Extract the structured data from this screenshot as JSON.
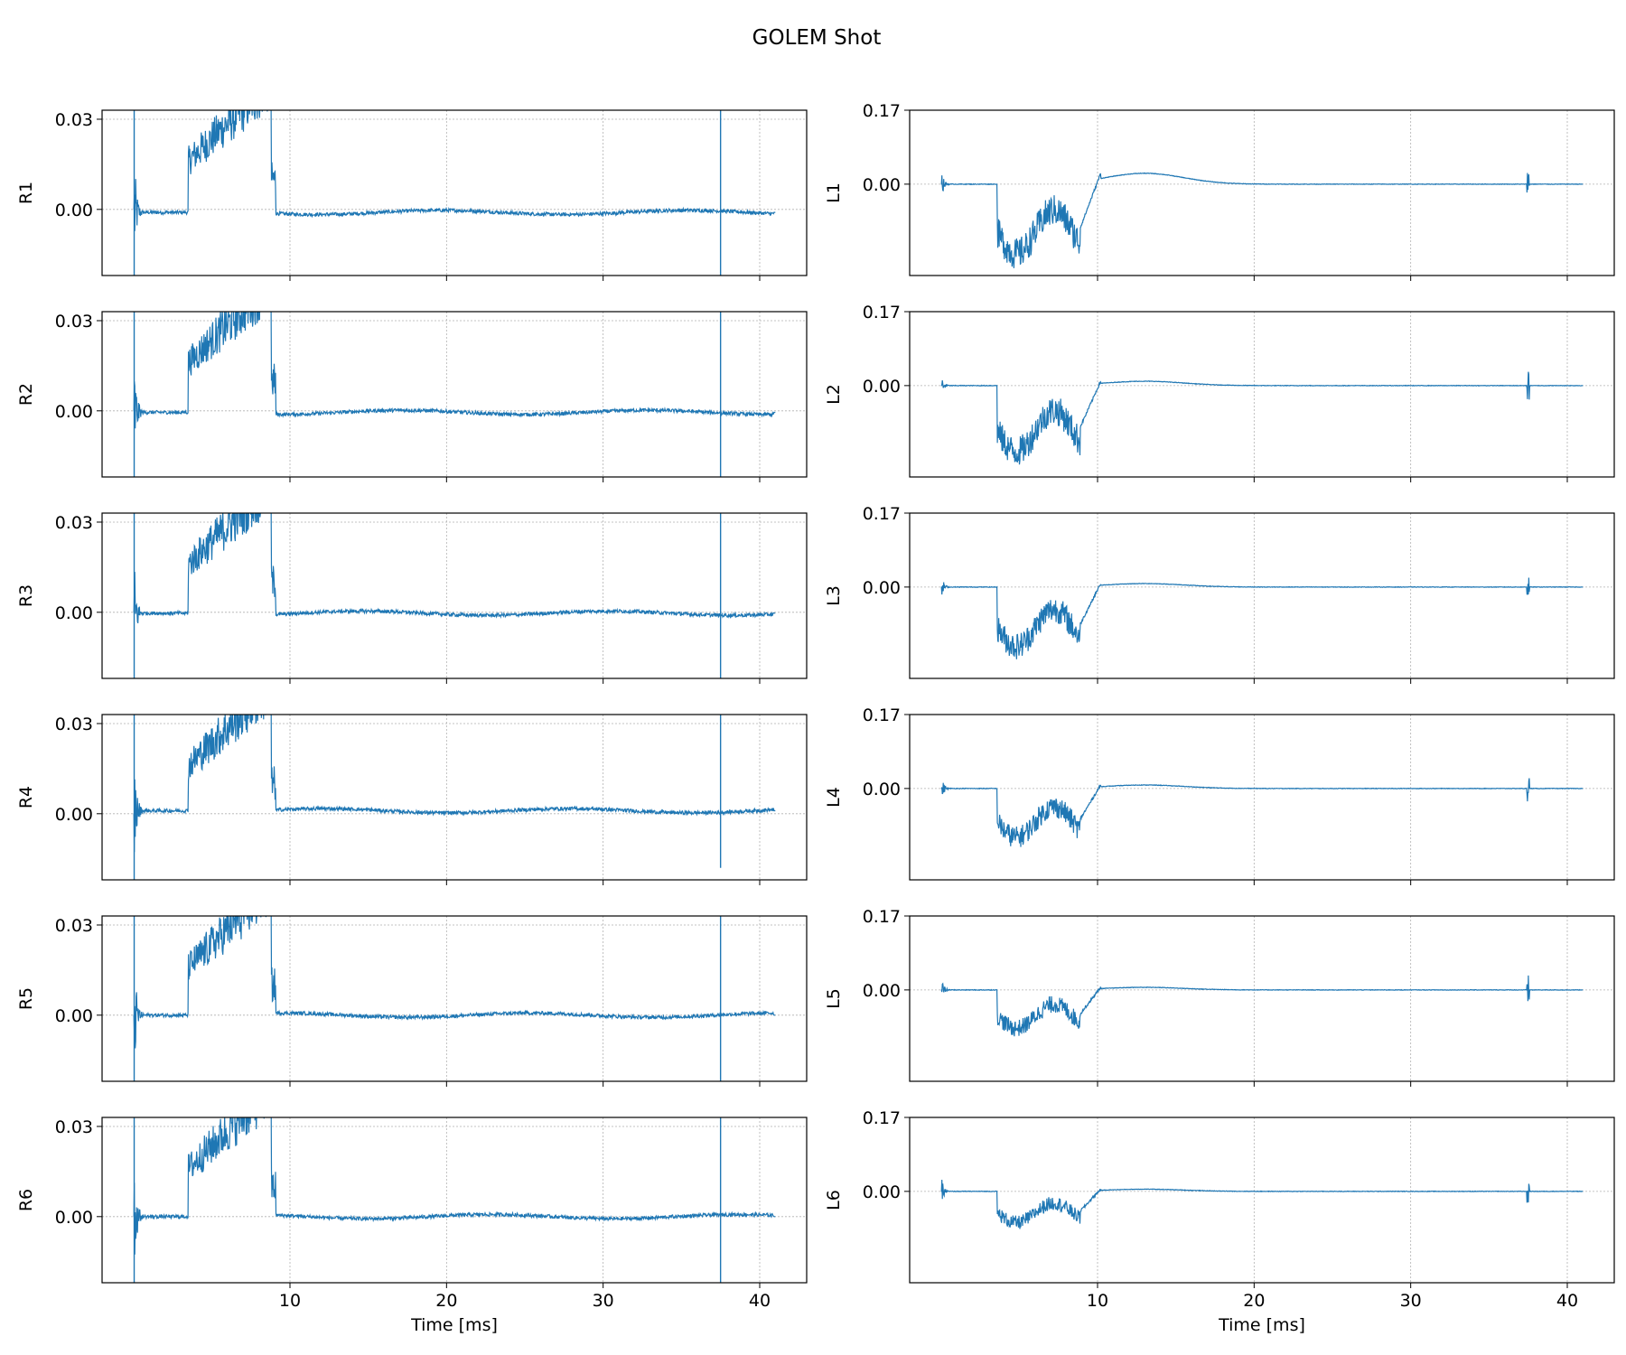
{
  "figure": {
    "title": "GOLEM Shot"
  },
  "chart_data": [
    {
      "type": "line",
      "ylabel": "R1",
      "yticks": [
        "0.03",
        "0.00"
      ],
      "ylim": [
        -0.022,
        0.033
      ],
      "xlim": [
        -2,
        43
      ],
      "xticks": [
        "10",
        "20",
        "30",
        "40"
      ],
      "xlabel": "",
      "series": [
        {
          "color": "#1f77b4",
          "baseline": -0.001
        }
      ]
    },
    {
      "type": "line",
      "ylabel": "R2",
      "yticks": [
        "0.03",
        "0.00"
      ],
      "ylim": [
        -0.022,
        0.033
      ],
      "xlim": [
        -2,
        43
      ],
      "xticks": [
        "10",
        "20",
        "30",
        "40"
      ],
      "xlabel": "",
      "series": [
        {
          "color": "#1f77b4",
          "baseline": -0.0005
        }
      ]
    },
    {
      "type": "line",
      "ylabel": "R3",
      "yticks": [
        "0.03",
        "0.00"
      ],
      "ylim": [
        -0.022,
        0.033
      ],
      "xlim": [
        -2,
        43
      ],
      "xticks": [
        "10",
        "20",
        "30",
        "40"
      ],
      "xlabel": "",
      "series": [
        {
          "color": "#1f77b4",
          "baseline": -0.0003
        }
      ]
    },
    {
      "type": "line",
      "ylabel": "R4",
      "yticks": [
        "0.03",
        "0.00"
      ],
      "ylim": [
        -0.022,
        0.033
      ],
      "xlim": [
        -2,
        43
      ],
      "xticks": [
        "10",
        "20",
        "30",
        "40"
      ],
      "xlabel": "",
      "series": [
        {
          "color": "#1f77b4",
          "baseline": 0.001
        }
      ]
    },
    {
      "type": "line",
      "ylabel": "R5",
      "yticks": [
        "0.03",
        "0.00"
      ],
      "ylim": [
        -0.022,
        0.033
      ],
      "xlim": [
        -2,
        43
      ],
      "xticks": [
        "10",
        "20",
        "30",
        "40"
      ],
      "xlabel": "",
      "series": [
        {
          "color": "#1f77b4",
          "baseline": 0.0
        }
      ]
    },
    {
      "type": "line",
      "ylabel": "R6",
      "yticks": [
        "0.03",
        "0.00"
      ],
      "ylim": [
        -0.022,
        0.033
      ],
      "xlim": [
        -2,
        43
      ],
      "xticks": [
        "10",
        "20",
        "30",
        "40"
      ],
      "xlabel": "Time [ms]",
      "series": [
        {
          "color": "#1f77b4",
          "baseline": 0.0
        }
      ]
    },
    {
      "type": "line",
      "ylabel": "L1",
      "yticks": [
        "0.17",
        "0.00"
      ],
      "ylim": [
        -0.21,
        0.17
      ],
      "xlim": [
        -2,
        43
      ],
      "xticks": [
        "10",
        "20",
        "30",
        "40"
      ],
      "xlabel": "",
      "series": [
        {
          "color": "#1f77b4",
          "dip": -0.2,
          "bump": 0.025
        }
      ]
    },
    {
      "type": "line",
      "ylabel": "L2",
      "yticks": [
        "0.17",
        "0.00"
      ],
      "ylim": [
        -0.21,
        0.17
      ],
      "xlim": [
        -2,
        43
      ],
      "xticks": [
        "10",
        "20",
        "30",
        "40"
      ],
      "xlabel": "",
      "series": [
        {
          "color": "#1f77b4",
          "dip": -0.19,
          "bump": 0.01
        }
      ]
    },
    {
      "type": "line",
      "ylabel": "L3",
      "yticks": [
        "0.17",
        "0.00"
      ],
      "ylim": [
        -0.21,
        0.17
      ],
      "xlim": [
        -2,
        43
      ],
      "xticks": [
        "10",
        "20",
        "30",
        "40"
      ],
      "xlabel": "",
      "series": [
        {
          "color": "#1f77b4",
          "dip": -0.17,
          "bump": 0.008
        }
      ]
    },
    {
      "type": "line",
      "ylabel": "L4",
      "yticks": [
        "0.17",
        "0.00"
      ],
      "ylim": [
        -0.21,
        0.17
      ],
      "xlim": [
        -2,
        43
      ],
      "xticks": [
        "10",
        "20",
        "30",
        "40"
      ],
      "xlabel": "",
      "series": [
        {
          "color": "#1f77b4",
          "dip": -0.14,
          "bump": 0.008
        }
      ]
    },
    {
      "type": "line",
      "ylabel": "L5",
      "yticks": [
        "0.17",
        "0.00"
      ],
      "ylim": [
        -0.21,
        0.17
      ],
      "xlim": [
        -2,
        43
      ],
      "xticks": [
        "10",
        "20",
        "30",
        "40"
      ],
      "xlabel": "",
      "series": [
        {
          "color": "#1f77b4",
          "dip": -0.11,
          "bump": 0.006
        }
      ]
    },
    {
      "type": "line",
      "ylabel": "L6",
      "yticks": [
        "0.17",
        "0.00"
      ],
      "ylim": [
        -0.21,
        0.17
      ],
      "xlim": [
        -2,
        43
      ],
      "xticks": [
        "10",
        "20",
        "30",
        "40"
      ],
      "xlabel": "Time [ms]",
      "series": [
        {
          "color": "#1f77b4",
          "dip": -0.09,
          "bump": 0.005
        }
      ]
    }
  ]
}
